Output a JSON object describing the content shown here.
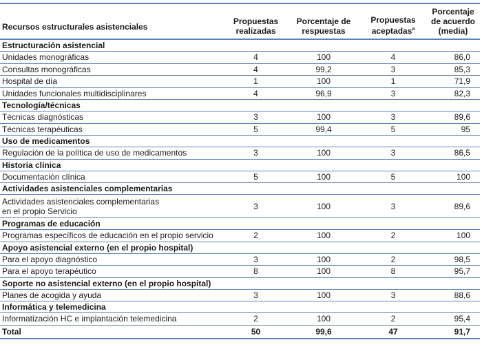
{
  "headers": {
    "c0": "Recursos estructurales asistenciales",
    "c1a": "Propuestas",
    "c1b": "realizadas",
    "c2a": "Porcentaje de",
    "c2b": "respuestas",
    "c3a": "Propuestas",
    "c3b": "aceptadas",
    "c3sup": "a",
    "c4a": "Porcentaje",
    "c4b": "de acuerdo",
    "c4c": "(media)"
  },
  "groups": [
    {
      "title": "Estructuración asistencial",
      "rows": [
        [
          "Unidades monográficas",
          "4",
          "100",
          "4",
          "86,0"
        ],
        [
          "Consultas monográficas",
          "4",
          "99,2",
          "3",
          "85,3"
        ],
        [
          "Hospital de día",
          "1",
          "100",
          "1",
          "71,9"
        ],
        [
          "Unidades funcionales multidisciplinares",
          "4",
          "96,9",
          "3",
          "82,3"
        ]
      ]
    },
    {
      "title": "Tecnología/técnicas",
      "rows": [
        [
          "Técnicas diagnósticas",
          "3",
          "100",
          "3",
          "89,6"
        ],
        [
          "Técnicas terapéuticas",
          "5",
          "99,4",
          "5",
          "95"
        ]
      ]
    },
    {
      "title": "Uso de medicamentos",
      "rows": [
        [
          "Regulación de la política de uso de medicamentos",
          "3",
          "100",
          "3",
          "86,5"
        ]
      ]
    },
    {
      "title": "Historia clínica",
      "rows": [
        [
          "Documentación clínica",
          "5",
          "100",
          "5",
          "100"
        ]
      ]
    },
    {
      "title": "Actividades asistenciales complementarias",
      "rows": [
        [
          "Actividades asistenciales complementarias",
          "3",
          "100",
          "3",
          "89,6",
          "en el propio Servicio"
        ]
      ]
    },
    {
      "title": "Programas de educación",
      "rows": [
        [
          "Programas específicos de educación en el propio servicio",
          "2",
          "100",
          "2",
          "100"
        ]
      ]
    },
    {
      "title": "Apoyo asistencial externo (en el propio hospital)",
      "rows": [
        [
          "Para el apoyo diagnóstico",
          "3",
          "100",
          "2",
          "98,5"
        ],
        [
          "Para el apoyo terapéutico",
          "8",
          "100",
          "8",
          "95,7"
        ]
      ]
    },
    {
      "title": "Soporte no asistencial externo (en el propio hospital)",
      "rows": [
        [
          "Planes de acogida y ayuda",
          "3",
          "100",
          "3",
          "88,6"
        ]
      ]
    },
    {
      "title": "Informática y telemedicina",
      "rows": [
        [
          "Informatización HC e implantación telemedicina",
          "2",
          "100",
          "2",
          "95,4"
        ]
      ]
    }
  ],
  "total": [
    "Total",
    "50",
    "99,6",
    "47",
    "91,7"
  ]
}
